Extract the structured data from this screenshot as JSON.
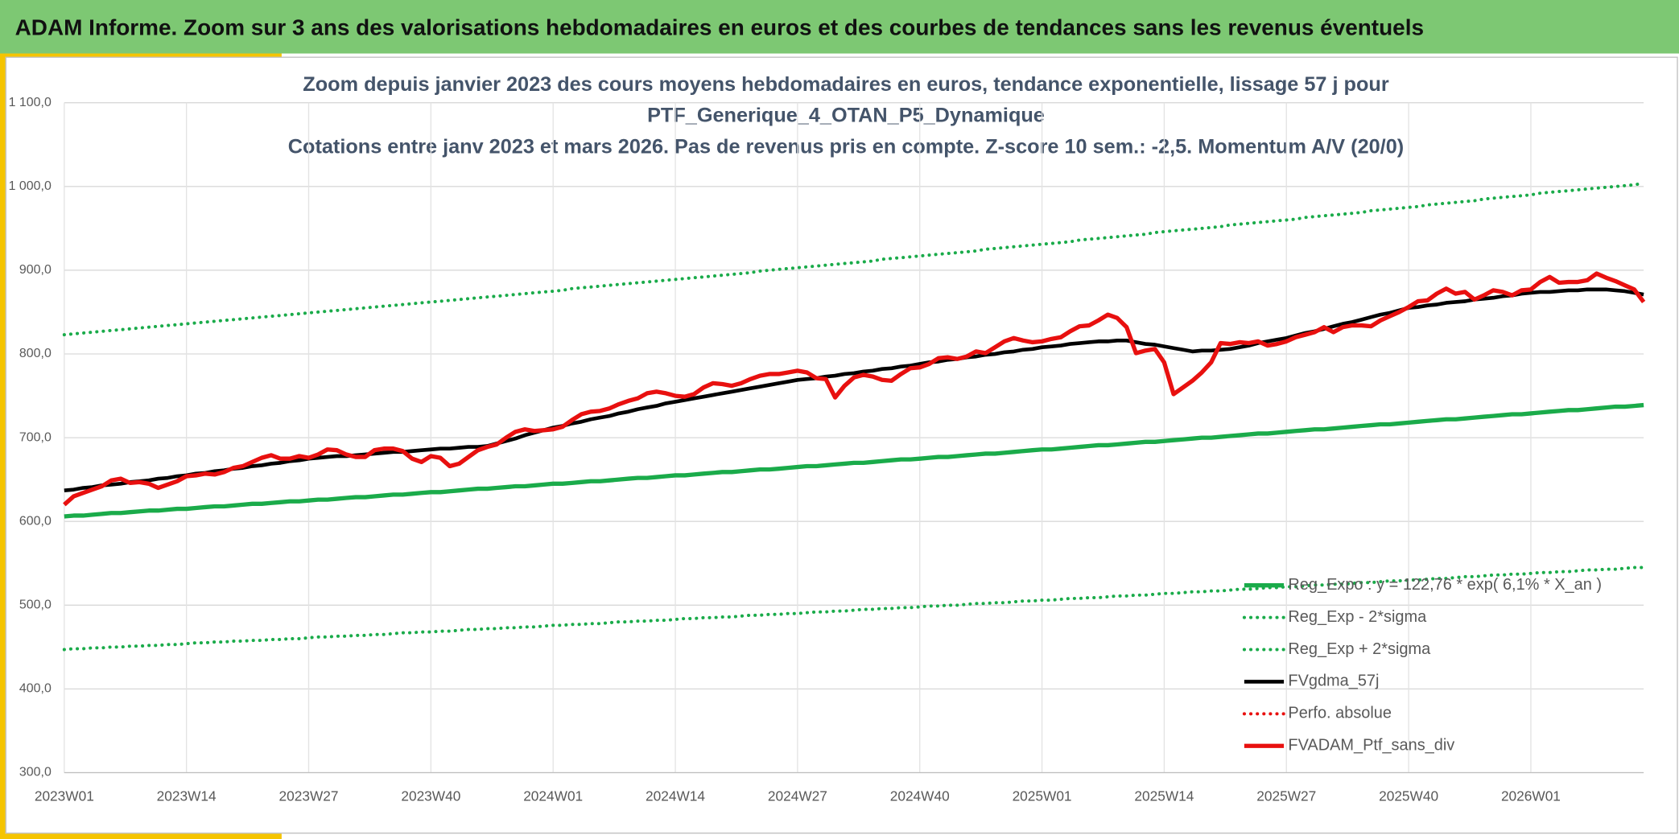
{
  "header": {
    "title": "ADAM Informe. Zoom sur 3 ans des valorisations hebdomadaires en euros et des courbes de tendances sans les revenus éventuels"
  },
  "chart_data": {
    "type": "line",
    "title": [
      "Zoom depuis janvier 2023 des cours moyens hebdomadaires en euros, tendance exponentielle, lissage 57 j pour",
      "PTF_Generique_4_OTAN_P5_Dynamique",
      "Cotations entre janv 2023 et mars 2026. Pas de revenus pris en compte. Z-score 10 sem.: -2,5. Momentum A/V (20/0)"
    ],
    "categories": [
      "2023W01",
      null,
      null,
      null,
      null,
      null,
      null,
      null,
      null,
      null,
      null,
      null,
      null,
      "2023W14",
      null,
      null,
      null,
      null,
      null,
      null,
      null,
      null,
      null,
      null,
      null,
      null,
      "2023W27",
      null,
      null,
      null,
      null,
      null,
      null,
      null,
      null,
      null,
      null,
      null,
      null,
      "2023W40",
      null,
      null,
      null,
      null,
      null,
      null,
      null,
      null,
      null,
      null,
      null,
      null,
      "2024W01",
      null,
      null,
      null,
      null,
      null,
      null,
      null,
      null,
      null,
      null,
      null,
      null,
      "2024W14",
      null,
      null,
      null,
      null,
      null,
      null,
      null,
      null,
      null,
      null,
      null,
      null,
      "2024W27",
      null,
      null,
      null,
      null,
      null,
      null,
      null,
      null,
      null,
      null,
      null,
      null,
      "2024W40",
      null,
      null,
      null,
      null,
      null,
      null,
      null,
      null,
      null,
      null,
      null,
      null,
      "2025W01",
      null,
      null,
      null,
      null,
      null,
      null,
      null,
      null,
      null,
      null,
      null,
      null,
      "2025W14",
      null,
      null,
      null,
      null,
      null,
      null,
      null,
      null,
      null,
      null,
      null,
      null,
      "2025W27",
      null,
      null,
      null,
      null,
      null,
      null,
      null,
      null,
      null,
      null,
      null,
      null,
      "2025W40",
      null,
      null,
      null,
      null,
      null,
      null,
      null,
      null,
      null,
      null,
      null,
      null,
      "2026W01",
      null,
      null,
      null,
      null,
      null,
      null,
      null,
      null,
      null,
      null,
      null,
      null
    ],
    "ylim": [
      300,
      1100
    ],
    "yticks": [
      {
        "value": 300,
        "label": "300,0"
      },
      {
        "value": 400,
        "label": "400,0"
      },
      {
        "value": 500,
        "label": "500,0"
      },
      {
        "value": 600,
        "label": "600,0"
      },
      {
        "value": 700,
        "label": "700,0"
      },
      {
        "value": 800,
        "label": "800,0"
      },
      {
        "value": 900,
        "label": "900,0"
      },
      {
        "value": 1000,
        "label": "1 000,0"
      },
      {
        "value": 1100,
        "label": "1 100,0"
      }
    ],
    "grid": true,
    "legend": "bottom-right",
    "series": [
      {
        "name": "Reg_Expo : y = 122,76 * exp( 6,1% * X_an )",
        "color": "#1aab4a",
        "style": "solid",
        "values": [
          606,
          607,
          607,
          608,
          609,
          610,
          610,
          611,
          612,
          613,
          613,
          614,
          615,
          615,
          616,
          617,
          618,
          618,
          619,
          620,
          621,
          621,
          622,
          623,
          624,
          624,
          625,
          626,
          626,
          627,
          628,
          629,
          629,
          630,
          631,
          632,
          632,
          633,
          634,
          635,
          635,
          636,
          637,
          638,
          639,
          639,
          640,
          641,
          642,
          642,
          643,
          644,
          645,
          645,
          646,
          647,
          648,
          648,
          649,
          650,
          651,
          652,
          652,
          653,
          654,
          655,
          655,
          656,
          657,
          658,
          659,
          659,
          660,
          661,
          662,
          662,
          663,
          664,
          665,
          666,
          666,
          667,
          668,
          669,
          670,
          670,
          671,
          672,
          673,
          674,
          674,
          675,
          676,
          677,
          677,
          678,
          679,
          680,
          681,
          681,
          682,
          683,
          684,
          685,
          686,
          686,
          687,
          688,
          689,
          690,
          691,
          691,
          692,
          693,
          694,
          695,
          695,
          696,
          697,
          698,
          699,
          700,
          700,
          701,
          702,
          703,
          704,
          705,
          705,
          706,
          707,
          708,
          709,
          710,
          710,
          711,
          712,
          713,
          714,
          715,
          716,
          716,
          717,
          718,
          719,
          720,
          721,
          722,
          722,
          723,
          724,
          725,
          726,
          727,
          728,
          728,
          729,
          730,
          731,
          732,
          733,
          733,
          734,
          735,
          736,
          737,
          737,
          738,
          739
        ]
      },
      {
        "name": "Reg_Exp - 2*sigma",
        "color": "#1aab4a",
        "style": "dotted",
        "values": [
          447,
          448,
          448,
          449,
          449,
          450,
          450,
          451,
          451,
          452,
          452,
          453,
          453,
          454,
          455,
          455,
          456,
          456,
          457,
          457,
          458,
          458,
          459,
          459,
          460,
          460,
          461,
          462,
          462,
          463,
          463,
          464,
          464,
          465,
          465,
          466,
          467,
          467,
          468,
          468,
          469,
          469,
          470,
          471,
          471,
          472,
          472,
          473,
          473,
          474,
          474,
          475,
          476,
          476,
          477,
          477,
          478,
          478,
          479,
          480,
          480,
          481,
          481,
          482,
          482,
          483,
          484,
          484,
          485,
          485,
          486,
          486,
          487,
          488,
          488,
          489,
          489,
          490,
          490,
          491,
          492,
          492,
          493,
          493,
          494,
          495,
          495,
          496,
          496,
          497,
          497,
          498,
          499,
          499,
          500,
          500,
          501,
          502,
          502,
          503,
          503,
          504,
          505,
          505,
          506,
          506,
          507,
          508,
          508,
          509,
          509,
          510,
          511,
          511,
          512,
          512,
          513,
          514,
          514,
          515,
          516,
          516,
          517,
          517,
          518,
          519,
          519,
          520,
          521,
          521,
          522,
          522,
          523,
          524,
          524,
          525,
          525,
          526,
          527,
          527,
          528,
          529,
          529,
          530,
          530,
          531,
          532,
          532,
          533,
          534,
          534,
          535,
          536,
          536,
          537,
          537,
          538,
          539,
          539,
          540,
          540,
          541,
          542,
          542,
          543,
          543,
          544,
          545,
          545
        ]
      },
      {
        "name": "Reg_Exp + 2*sigma",
        "color": "#1aab4a",
        "style": "dotted",
        "values": [
          823,
          824,
          825,
          826,
          827,
          828,
          829,
          830,
          831,
          832,
          833,
          834,
          835,
          836,
          837,
          838,
          839,
          840,
          841,
          842,
          843,
          844,
          845,
          846,
          847,
          848,
          849,
          850,
          851,
          852,
          853,
          854,
          855,
          856,
          857,
          858,
          859,
          860,
          861,
          862,
          863,
          864,
          865,
          866,
          867,
          868,
          869,
          870,
          871,
          872,
          873,
          874,
          875,
          876,
          878,
          879,
          880,
          881,
          882,
          883,
          884,
          885,
          886,
          887,
          888,
          889,
          890,
          891,
          892,
          893,
          894,
          895,
          896,
          897,
          899,
          900,
          901,
          902,
          903,
          904,
          905,
          906,
          907,
          908,
          909,
          910,
          911,
          913,
          914,
          915,
          916,
          917,
          918,
          919,
          920,
          921,
          922,
          923,
          925,
          926,
          927,
          928,
          929,
          930,
          931,
          932,
          933,
          934,
          936,
          937,
          938,
          939,
          940,
          941,
          942,
          943,
          945,
          946,
          947,
          948,
          949,
          950,
          951,
          952,
          954,
          955,
          956,
          957,
          958,
          959,
          960,
          961,
          963,
          964,
          965,
          966,
          967,
          968,
          969,
          971,
          972,
          973,
          974,
          975,
          976,
          978,
          979,
          980,
          981,
          982,
          983,
          985,
          986,
          987,
          988,
          989,
          990,
          992,
          993,
          994,
          995,
          996,
          997,
          998,
          999,
          1000,
          1001,
          1002,
          1004
        ]
      },
      {
        "name": "FVgdma_57j",
        "color": "#000000",
        "style": "solid",
        "values": [
          637,
          638,
          640,
          641,
          643,
          644,
          645,
          647,
          648,
          649,
          651,
          652,
          654,
          655,
          657,
          658,
          660,
          661,
          663,
          664,
          666,
          667,
          669,
          670,
          672,
          673,
          675,
          676,
          677,
          678,
          678,
          679,
          680,
          681,
          682,
          683,
          683,
          684,
          685,
          686,
          687,
          687,
          688,
          689,
          689,
          690,
          693,
          696,
          699,
          703,
          706,
          709,
          712,
          714,
          717,
          719,
          722,
          724,
          726,
          729,
          731,
          734,
          736,
          738,
          741,
          743,
          745,
          747,
          749,
          751,
          753,
          755,
          757,
          759,
          761,
          763,
          765,
          767,
          769,
          770,
          771,
          773,
          774,
          776,
          777,
          779,
          780,
          782,
          783,
          785,
          786,
          788,
          790,
          791,
          793,
          794,
          796,
          797,
          799,
          800,
          802,
          803,
          805,
          806,
          808,
          809,
          810,
          812,
          813,
          814,
          815,
          815,
          816,
          816,
          814,
          812,
          811,
          809,
          807,
          805,
          803,
          804,
          804,
          805,
          806,
          808,
          810,
          813,
          815,
          817,
          819,
          822,
          825,
          827,
          830,
          833,
          836,
          838,
          841,
          844,
          847,
          849,
          852,
          855,
          856,
          858,
          859,
          861,
          862,
          863,
          865,
          866,
          867,
          869,
          870,
          872,
          873,
          874,
          874,
          875,
          876,
          876,
          877,
          877,
          877,
          876,
          875,
          873,
          871
        ]
      },
      {
        "name": "Perfo. absolue",
        "color": "#e8100f",
        "style": "dotted",
        "values": [
          null,
          null,
          null,
          null,
          null,
          null,
          null,
          null,
          null,
          null,
          null,
          null,
          null,
          null,
          null,
          null,
          null,
          null,
          null,
          null,
          null,
          null,
          null,
          null,
          null,
          null,
          null,
          null,
          null,
          null,
          null,
          null,
          null,
          null,
          null,
          null,
          null,
          null,
          null,
          null,
          null,
          null,
          null,
          null,
          null,
          null,
          null,
          null,
          null,
          null,
          null,
          null,
          null,
          null,
          null,
          null,
          null,
          null,
          null,
          null,
          null,
          null,
          null,
          null,
          null,
          null,
          null,
          null,
          null,
          null,
          null,
          null,
          null,
          null,
          null,
          null,
          null,
          null,
          null,
          null,
          null,
          null,
          null,
          null,
          null,
          null,
          null,
          null,
          null,
          null,
          null,
          null,
          null,
          null,
          null,
          null,
          null,
          null,
          null,
          null,
          null,
          null,
          null,
          null,
          null,
          null,
          null,
          null,
          null,
          null,
          null,
          null,
          null,
          null,
          null,
          null,
          null,
          null,
          null,
          null,
          null,
          null,
          null,
          null,
          null,
          null,
          null,
          null,
          null,
          null,
          null,
          null,
          null,
          null,
          null,
          null,
          null,
          null,
          null,
          null,
          null,
          null,
          null,
          null,
          null,
          null,
          null,
          null,
          null,
          null,
          null,
          null,
          null,
          null,
          null,
          null,
          null,
          null,
          null,
          null,
          null,
          null,
          null,
          null,
          null,
          null,
          null,
          null,
          null
        ]
      },
      {
        "name": "FVADAM_Ptf_sans_div",
        "color": "#e8100f",
        "style": "solid",
        "values": [
          620,
          630,
          634,
          638,
          642,
          649,
          651,
          646,
          647,
          645,
          640,
          644,
          648,
          654,
          655,
          657,
          656,
          659,
          664,
          666,
          671,
          676,
          679,
          675,
          675,
          678,
          676,
          680,
          686,
          685,
          680,
          677,
          677,
          685,
          687,
          687,
          684,
          675,
          671,
          678,
          676,
          666,
          669,
          677,
          685,
          689,
          692,
          700,
          707,
          710,
          708,
          709,
          710,
          713,
          721,
          728,
          731,
          732,
          735,
          740,
          744,
          747,
          753,
          755,
          753,
          750,
          749,
          752,
          760,
          765,
          764,
          762,
          765,
          770,
          774,
          776,
          776,
          778,
          780,
          778,
          771,
          770,
          748,
          762,
          772,
          775,
          773,
          769,
          768,
          776,
          783,
          784,
          788,
          795,
          796,
          794,
          797,
          803,
          801,
          808,
          815,
          819,
          816,
          814,
          815,
          818,
          820,
          827,
          833,
          834,
          840,
          847,
          843,
          832,
          801,
          804,
          806,
          790,
          752,
          760,
          768,
          778,
          790,
          813,
          812,
          814,
          813,
          815,
          810,
          812,
          815,
          820,
          823,
          826,
          832,
          826,
          832,
          834,
          834,
          833,
          840,
          845,
          850,
          856,
          863,
          864,
          872,
          878,
          872,
          874,
          865,
          870,
          876,
          874,
          870,
          876,
          877,
          886,
          892,
          885,
          886,
          886,
          888,
          896,
          891,
          887,
          882,
          877,
          862
        ]
      }
    ]
  }
}
